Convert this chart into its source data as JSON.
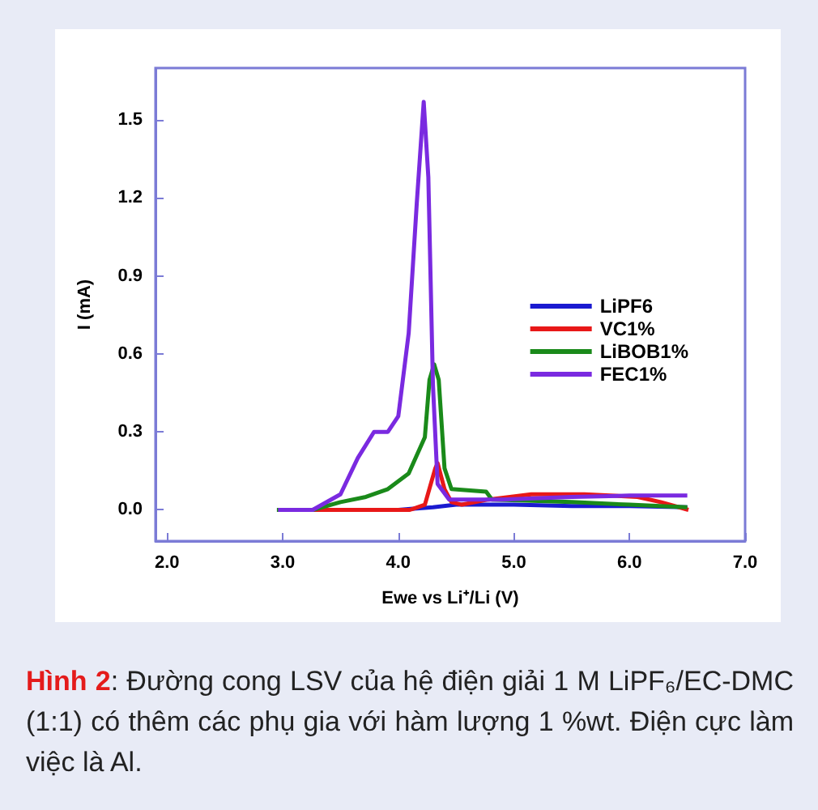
{
  "chart_data": {
    "type": "line",
    "xlabel": "Ewe vs Li⁺/Li (V)",
    "ylabel": "I (mA)",
    "xlim": [
      1.9,
      7.0
    ],
    "ylim": [
      -0.12,
      1.7
    ],
    "xticks": [
      {
        "value": 2,
        "label": "2.0"
      },
      {
        "value": 3,
        "label": "3.0"
      },
      {
        "value": 4,
        "label": "4.0"
      },
      {
        "value": 5,
        "label": "5.0"
      },
      {
        "value": 6,
        "label": "6.0"
      },
      {
        "value": 7,
        "label": "7.0"
      }
    ],
    "yticks": [
      {
        "value": 0,
        "label": "0.0"
      },
      {
        "value": 0.3,
        "label": "0.3"
      },
      {
        "value": 0.6,
        "label": "0.6"
      },
      {
        "value": 0.9,
        "label": "0.9"
      },
      {
        "value": 1.2,
        "label": "1.2"
      },
      {
        "value": 1.5,
        "label": "1.5"
      }
    ],
    "grid": false,
    "legend": "right",
    "marker": "none",
    "line_style": "solid",
    "series": [
      {
        "name": "LiPF6",
        "color": "#1a1ad0",
        "x": [
          2.96,
          3.5,
          4.0,
          4.3,
          4.5,
          5.0,
          5.5,
          6.0,
          6.5
        ],
        "values": [
          0,
          0,
          0,
          0.01,
          0.02,
          0.02,
          0.015,
          0.015,
          0.01
        ]
      },
      {
        "name": "VC1%",
        "color": "#e81818",
        "x": [
          2.96,
          3.5,
          4.1,
          4.23,
          4.32,
          4.34,
          4.4,
          4.46,
          4.55,
          4.78,
          5.15,
          5.61,
          6.07,
          6.27,
          6.51
        ],
        "values": [
          0,
          0,
          0,
          0.02,
          0.16,
          0.18,
          0.08,
          0.03,
          0.02,
          0.04,
          0.06,
          0.06,
          0.05,
          0.03,
          0
        ]
      },
      {
        "name": "LiBOB1%",
        "color": "#1a8a1a",
        "x": [
          2.95,
          3.26,
          3.5,
          3.72,
          3.91,
          4.09,
          4.23,
          4.27,
          4.31,
          4.35,
          4.4,
          4.46,
          4.76,
          4.81,
          5.5,
          6.0,
          6.5
        ],
        "values": [
          0,
          0,
          0.03,
          0.05,
          0.08,
          0.14,
          0.28,
          0.5,
          0.56,
          0.5,
          0.16,
          0.08,
          0.07,
          0.04,
          0.03,
          0.02,
          0.01
        ]
      },
      {
        "name": "FEC1%",
        "color": "#7a2ae0",
        "x": [
          2.96,
          3.26,
          3.5,
          3.65,
          3.79,
          3.91,
          4.0,
          4.09,
          4.16,
          4.22,
          4.26,
          4.3,
          4.34,
          4.44,
          4.9,
          5.5,
          6.0,
          6.5
        ],
        "values": [
          0,
          0,
          0.06,
          0.2,
          0.3,
          0.3,
          0.36,
          0.68,
          1.18,
          1.57,
          1.28,
          0.48,
          0.1,
          0.04,
          0.04,
          0.05,
          0.055,
          0.055
        ]
      }
    ],
    "annotations": [
      "Hình 2: Đường cong LSV của hệ điện giải 1 M LiPF₆/EC-DMC (1:1) có thêm các phụ gia với hàm lượng 1 %wt. Điện cực làm việc là Al."
    ]
  }
}
